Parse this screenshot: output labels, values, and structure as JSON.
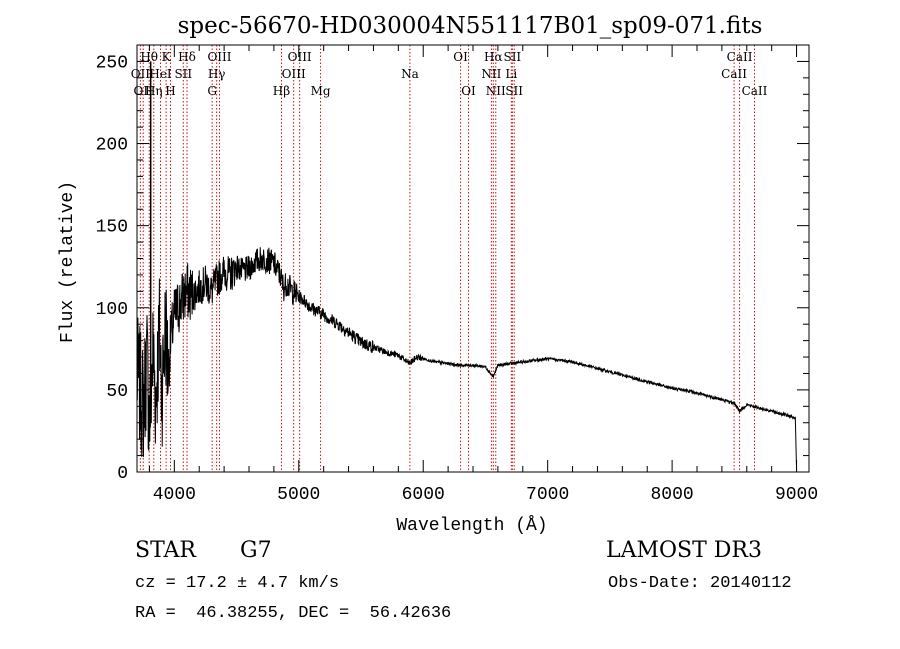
{
  "chart_data": {
    "type": "line",
    "title": "spec-56670-HD030004N551117B01_sp09-071.fits",
    "xlabel": "Wavelength (Å)",
    "ylabel": "Flux (relative)",
    "xlim": [
      3700,
      9100
    ],
    "ylim": [
      0,
      260
    ],
    "xticks": [
      4000,
      5000,
      6000,
      7000,
      8000,
      9000
    ],
    "yticks": [
      0,
      50,
      100,
      150,
      200,
      250
    ],
    "series": [
      {
        "name": "flux",
        "x": [
          3700,
          3750,
          3780,
          3800,
          3830,
          3850,
          3880,
          3900,
          3930,
          3950,
          3970,
          4000,
          4030,
          4060,
          4100,
          4150,
          4200,
          4250,
          4300,
          4350,
          4400,
          4450,
          4500,
          4550,
          4600,
          4650,
          4700,
          4750,
          4800,
          4850,
          4880,
          4900,
          4950,
          5000,
          5050,
          5100,
          5150,
          5200,
          5250,
          5300,
          5350,
          5400,
          5450,
          5500,
          5600,
          5700,
          5800,
          5890,
          5950,
          6000,
          6100,
          6200,
          6300,
          6400,
          6500,
          6563,
          6600,
          6700,
          6800,
          6900,
          7000,
          7100,
          7200,
          7300,
          7400,
          7500,
          7600,
          7700,
          7800,
          7900,
          8000,
          8100,
          8200,
          8300,
          8400,
          8500,
          8542,
          8600,
          8700,
          8800,
          8900,
          8990,
          9000
        ],
        "y": [
          60,
          40,
          68,
          30,
          75,
          45,
          85,
          50,
          90,
          60,
          80,
          95,
          100,
          105,
          110,
          108,
          112,
          115,
          110,
          118,
          122,
          120,
          125,
          122,
          124,
          128,
          130,
          129,
          127,
          120,
          112,
          115,
          110,
          107,
          104,
          100,
          98,
          96,
          93,
          91,
          88,
          85,
          82,
          79,
          76,
          73,
          71,
          66,
          70,
          69,
          67,
          66,
          65,
          65,
          64,
          58,
          65,
          66,
          67,
          68,
          69,
          68,
          67,
          65,
          63,
          61,
          59,
          57,
          55,
          53,
          51,
          50,
          48,
          46,
          44,
          42,
          37,
          41,
          39,
          37,
          35,
          33,
          0
        ]
      }
    ],
    "lines": [
      {
        "x": 3727,
        "labels": [
          "OII"
        ],
        "row": 2
      },
      {
        "x": 3750,
        "labels": [
          "OII"
        ],
        "row": 3
      },
      {
        "x": 3798,
        "labels": [
          "Hθ"
        ],
        "row": 1
      },
      {
        "x": 3835,
        "labels": [
          "Hη"
        ],
        "row": 3
      },
      {
        "x": 3889,
        "labels": [
          "HeI"
        ],
        "row": 2
      },
      {
        "x": 3934,
        "labels": [
          "K"
        ],
        "row": 1
      },
      {
        "x": 3969,
        "labels": [
          "H"
        ],
        "row": 3
      },
      {
        "x": 4072,
        "labels": [
          "SII"
        ],
        "row": 2
      },
      {
        "x": 4102,
        "labels": [
          "Hδ"
        ],
        "row": 1
      },
      {
        "x": 4304,
        "labels": [
          "G"
        ],
        "row": 3
      },
      {
        "x": 4340,
        "labels": [
          "Hγ"
        ],
        "row": 2
      },
      {
        "x": 4363,
        "labels": [
          "OIII"
        ],
        "row": 1
      },
      {
        "x": 4861,
        "labels": [
          "Hβ"
        ],
        "row": 3
      },
      {
        "x": 4959,
        "labels": [
          "OIII"
        ],
        "row": 2
      },
      {
        "x": 5007,
        "labels": [
          "OIII"
        ],
        "row": 1
      },
      {
        "x": 5175,
        "labels": [
          "Mg"
        ],
        "row": 3
      },
      {
        "x": 5893,
        "labels": [
          "Na"
        ],
        "row": 2
      },
      {
        "x": 6300,
        "labels": [
          "OI"
        ],
        "row": 1
      },
      {
        "x": 6364,
        "labels": [
          "OI"
        ],
        "row": 3
      },
      {
        "x": 6548,
        "labels": [
          "NII"
        ],
        "row": 2
      },
      {
        "x": 6563,
        "labels": [
          "Hα"
        ],
        "row": 1
      },
      {
        "x": 6583,
        "labels": [
          "NII"
        ],
        "row": 3
      },
      {
        "x": 6708,
        "labels": [
          "Li"
        ],
        "row": 2
      },
      {
        "x": 6716,
        "labels": [
          "SII"
        ],
        "row": 1
      },
      {
        "x": 6731,
        "labels": [
          "SII"
        ],
        "row": 3
      },
      {
        "x": 8498,
        "labels": [
          "CaII"
        ],
        "row": 2
      },
      {
        "x": 8542,
        "labels": [
          "CaII"
        ],
        "row": 1
      },
      {
        "x": 8662,
        "labels": [
          "CaII"
        ],
        "row": 3
      }
    ]
  },
  "info": {
    "class": "STAR",
    "subclass": "G7",
    "survey": "LAMOST DR3",
    "cz": "cz = 17.2 ± 4.7 km/s",
    "obs_date": "Obs-Date: 20140112",
    "coords": "RA =  46.38255, DEC =  56.42636"
  }
}
